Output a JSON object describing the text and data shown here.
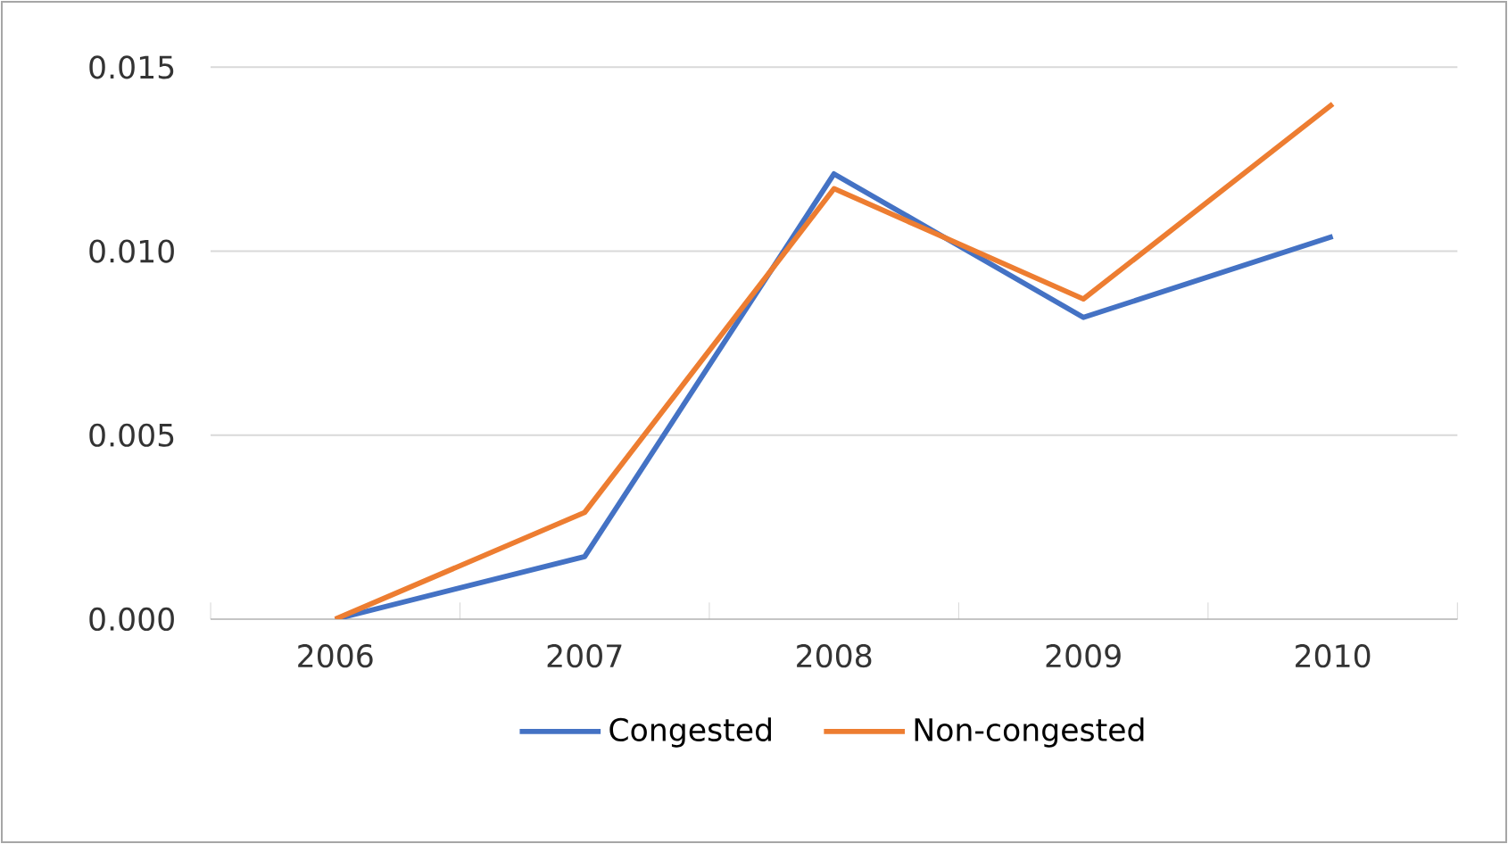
{
  "chart_data": {
    "type": "line",
    "categories": [
      "2006",
      "2007",
      "2008",
      "2009",
      "2010"
    ],
    "series": [
      {
        "name": "Congested",
        "color": "#4472c4",
        "values": [
          0.0,
          0.0017,
          0.0121,
          0.0082,
          0.0104
        ]
      },
      {
        "name": "Non-congested",
        "color": "#ed7d31",
        "values": [
          0.0,
          0.0029,
          0.0117,
          0.0087,
          0.014
        ]
      }
    ],
    "ylim": [
      0,
      0.015
    ],
    "yticks": [
      {
        "value": 0,
        "label": "0.000"
      },
      {
        "value": 0.005,
        "label": "0.005"
      },
      {
        "value": 0.01,
        "label": "0.010"
      },
      {
        "value": 0.015,
        "label": "0.015"
      }
    ],
    "grid": "y",
    "legend": "bottom",
    "marker": "none",
    "line_style": "solid"
  }
}
